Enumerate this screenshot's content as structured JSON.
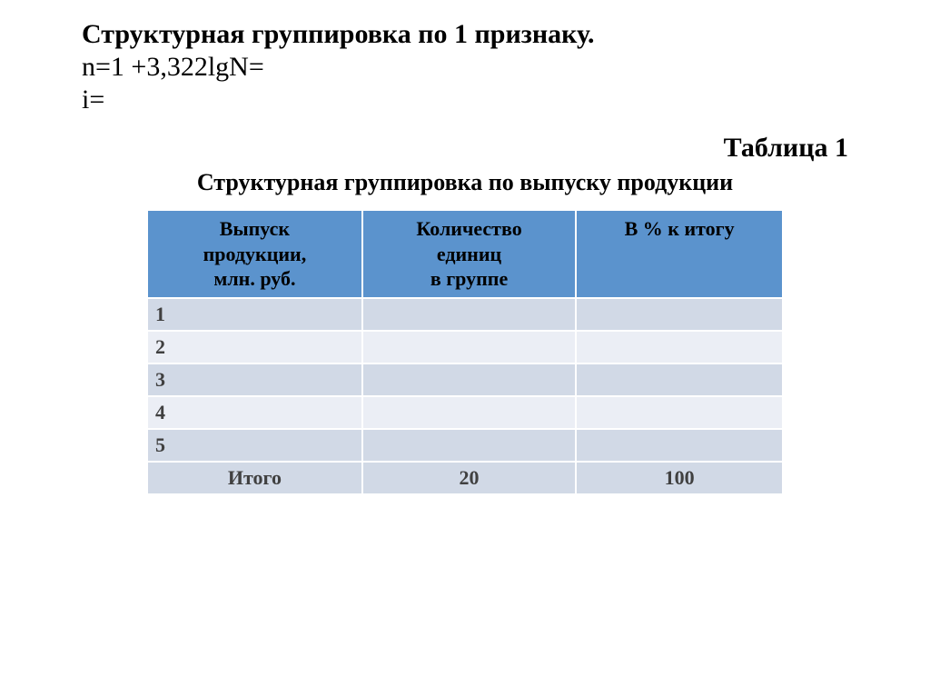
{
  "heading": {
    "line1_bold": "Структурная группировка по 1 признаку.",
    "line2": "n=1 +3,322lgN=",
    "line3": "i="
  },
  "table_label": "Таблица 1",
  "table_title": "Структурная группировка по выпуску продукции",
  "table": {
    "columns": [
      {
        "l1": "Выпуск",
        "l2": "продукции,",
        "l3": "млн. руб."
      },
      {
        "l1": "Количество",
        "l2": "единиц",
        "l3": "в группе"
      },
      {
        "l1": "В % к итогу",
        "l2": "",
        "l3": ""
      }
    ],
    "rows": [
      {
        "c1": "1",
        "c2": "",
        "c3": ""
      },
      {
        "c1": "2",
        "c2": "",
        "c3": ""
      },
      {
        "c1": "3",
        "c2": "",
        "c3": ""
      },
      {
        "c1": "4",
        "c2": "",
        "c3": ""
      },
      {
        "c1": "5",
        "c2": "",
        "c3": ""
      }
    ],
    "total": {
      "c1": "Итого",
      "c2": "20",
      "c3": "100"
    },
    "header_bg": "#5b93cd",
    "row_odd_bg": "#d1d9e6",
    "row_even_bg": "#ebeef5",
    "border_color": "#ffffff",
    "text_color": "#404040"
  }
}
